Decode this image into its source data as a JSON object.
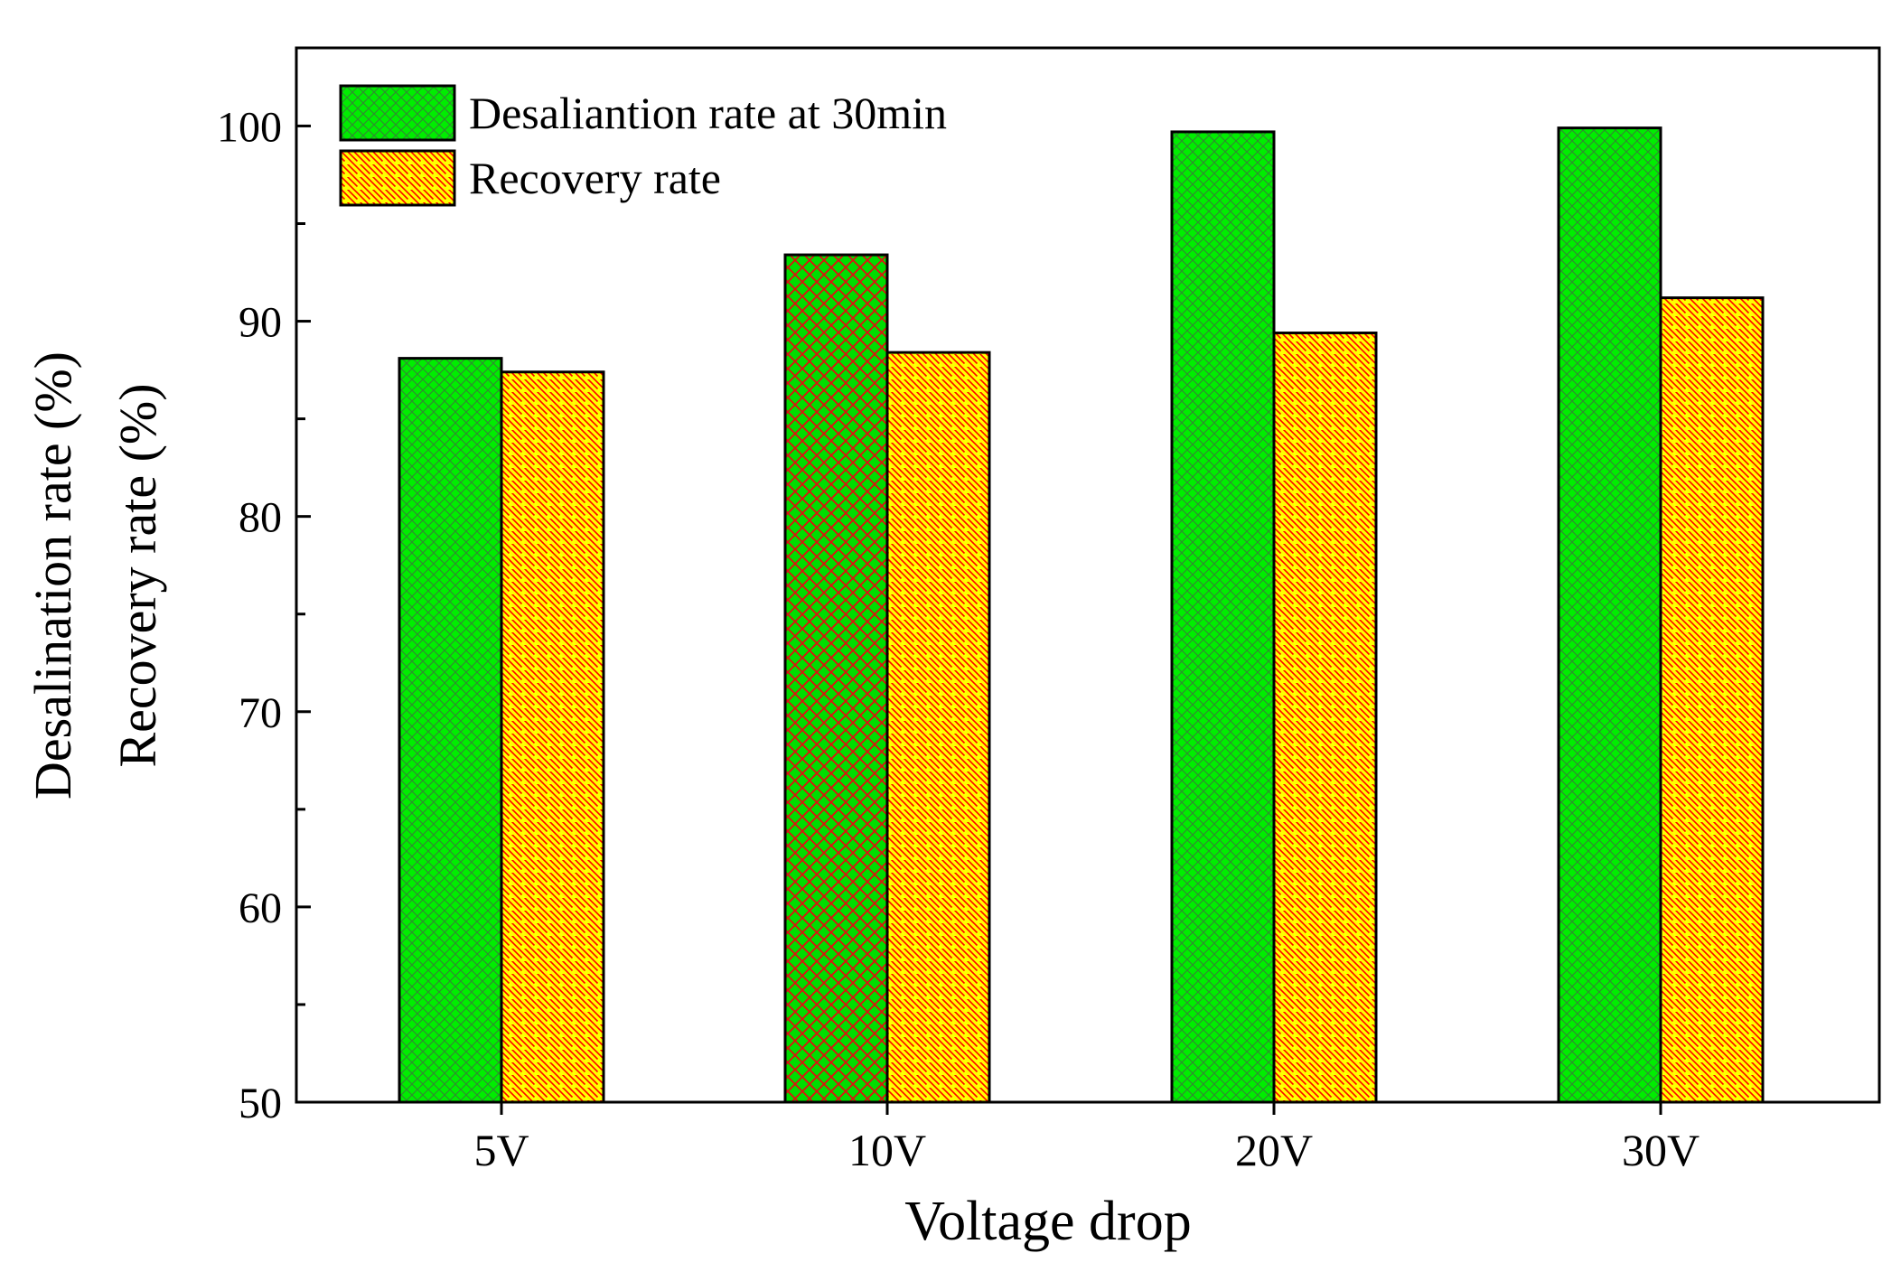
{
  "chart_data": {
    "type": "bar",
    "title": "",
    "xlabel": "Voltage drop",
    "ylabel_lines": [
      "Desalination rate (%)",
      "Recovery rate (%)"
    ],
    "categories": [
      "5V",
      "10V",
      "20V",
      "30V"
    ],
    "ylim": [
      50,
      104
    ],
    "yticks": [
      50,
      60,
      70,
      80,
      90,
      100
    ],
    "grid": false,
    "legend_position": "top-left",
    "series": [
      {
        "name": "Desaliantion rate at 30min",
        "values": [
          88.1,
          93.4,
          99.7,
          99.9
        ],
        "fill": "#00ee00",
        "hatch": "crosshatch",
        "hatch_color": "#2f8f2f"
      },
      {
        "name": "Recovery rate",
        "values": [
          87.4,
          88.4,
          89.4,
          91.2
        ],
        "fill": "#ffff00",
        "hatch": "diagonal",
        "hatch_color": "#ff0000"
      }
    ]
  }
}
